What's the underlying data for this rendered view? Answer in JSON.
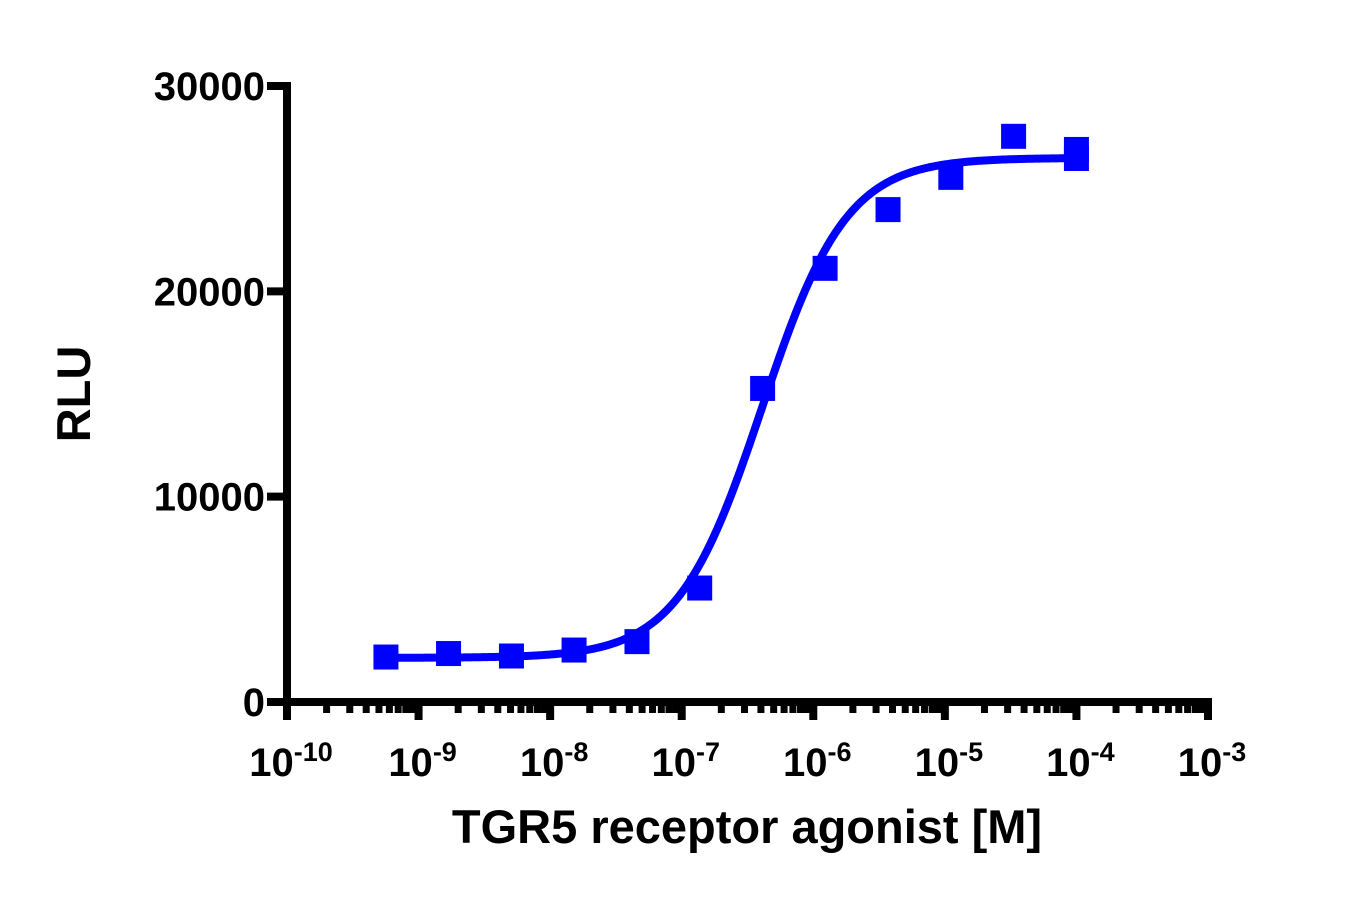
{
  "chart_data": {
    "type": "scatter",
    "subtype": "dose-response with fitted sigmoidal curve (log x-axis)",
    "title": "",
    "xlabel": "TGR5 receptor agonist [M]",
    "ylabel": "RLU",
    "xscale": "log10",
    "xlim": [
      1e-10,
      0.001
    ],
    "ylim": [
      0,
      30000
    ],
    "x_ticks": [
      {
        "exp": -10,
        "label_base": "10",
        "label_sup": "-10"
      },
      {
        "exp": -9,
        "label_base": "10",
        "label_sup": "-9"
      },
      {
        "exp": -8,
        "label_base": "10",
        "label_sup": "-8"
      },
      {
        "exp": -7,
        "label_base": "10",
        "label_sup": "-7"
      },
      {
        "exp": -6,
        "label_base": "10",
        "label_sup": "-6"
      },
      {
        "exp": -5,
        "label_base": "10",
        "label_sup": "-5"
      },
      {
        "exp": -4,
        "label_base": "10",
        "label_sup": "-4"
      },
      {
        "exp": -3,
        "label_base": "10",
        "label_sup": "-3"
      }
    ],
    "y_ticks": [
      {
        "value": 0,
        "label": "0"
      },
      {
        "value": 10000,
        "label": "10000"
      },
      {
        "value": 20000,
        "label": "20000"
      },
      {
        "value": 30000,
        "label": "30000"
      }
    ],
    "grid": false,
    "legend": null,
    "series": [
      {
        "name": "TGR5 receptor agonist",
        "marker": "square",
        "color": "#0000FF",
        "points": [
          {
            "x": 5.65e-10,
            "y": 2190
          },
          {
            "x": 1.69e-09,
            "y": 2360
          },
          {
            "x": 5.08e-09,
            "y": 2240
          },
          {
            "x": 1.52e-08,
            "y": 2530
          },
          {
            "x": 4.57e-08,
            "y": 2940
          },
          {
            "x": 1.37e-07,
            "y": 5550
          },
          {
            "x": 4.12e-07,
            "y": 15270
          },
          {
            "x": 1.23e-06,
            "y": 21120
          },
          {
            "x": 3.7e-06,
            "y": 23980
          },
          {
            "x": 1.11e-05,
            "y": 25550
          },
          {
            "x": 3.33e-05,
            "y": 27550
          },
          {
            "x": 0.0001,
            "y": 26910
          },
          {
            "x": 0.0001,
            "y": 26470
          }
        ]
      }
    ],
    "fit": {
      "model": "four-parameter logistic",
      "color": "#0000FF",
      "bottom": 2150,
      "top": 26500,
      "logEC50": -6.39,
      "hill_slope": 1.35,
      "x_range": [
        5.65e-10,
        0.0001
      ]
    }
  }
}
